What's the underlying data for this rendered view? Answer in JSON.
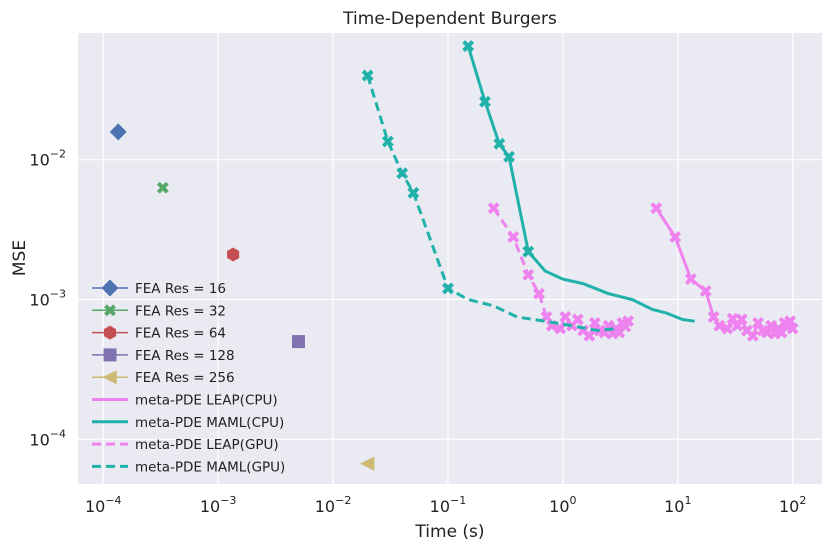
{
  "chart_data": {
    "type": "scatter",
    "title": "Time-Dependent Burgers",
    "xlabel": "Time (s)",
    "ylabel": "MSE",
    "xscale": "log",
    "yscale": "log",
    "xlim": [
      6.03e-05,
      180
    ],
    "ylim": [
      4.79e-05,
      0.0806
    ],
    "grid": true,
    "legend_position": "lower-left",
    "x_ticks": [
      {
        "value": 0.0001,
        "base": "10",
        "exp": "−4"
      },
      {
        "value": 0.001,
        "base": "10",
        "exp": "−3"
      },
      {
        "value": 0.01,
        "base": "10",
        "exp": "−2"
      },
      {
        "value": 0.1,
        "base": "10",
        "exp": "−1"
      },
      {
        "value": 1,
        "base": "10",
        "exp": "0"
      },
      {
        "value": 10,
        "base": "10",
        "exp": "1"
      },
      {
        "value": 100,
        "base": "10",
        "exp": "2"
      }
    ],
    "y_ticks": [
      {
        "value": 0.0001,
        "base": "10",
        "exp": "−4"
      },
      {
        "value": 0.001,
        "base": "10",
        "exp": "−3"
      },
      {
        "value": 0.01,
        "base": "10",
        "exp": "−2"
      }
    ],
    "series": [
      {
        "name": "FEA Res = 16",
        "kind": "marker",
        "marker": "diamond",
        "color": "#4c72b0",
        "points": [
          {
            "x": 0.000135,
            "y": 0.0158
          }
        ]
      },
      {
        "name": "FEA Res = 32",
        "kind": "marker",
        "marker": "x",
        "color": "#55a868",
        "points": [
          {
            "x": 0.00033,
            "y": 0.0063
          }
        ]
      },
      {
        "name": "FEA Res = 64",
        "kind": "marker",
        "marker": "hexagon",
        "color": "#c44e52",
        "points": [
          {
            "x": 0.00135,
            "y": 0.0021
          }
        ]
      },
      {
        "name": "FEA Res = 128",
        "kind": "marker",
        "marker": "square",
        "color": "#8172b2",
        "points": [
          {
            "x": 0.005,
            "y": 0.0005
          }
        ]
      },
      {
        "name": "FEA Res = 256",
        "kind": "marker",
        "marker": "triangle-left",
        "color": "#ccb974",
        "points": [
          {
            "x": 0.02,
            "y": 6.7e-05
          }
        ]
      },
      {
        "name": "meta-PDE LEAP(CPU)",
        "kind": "line",
        "dash": false,
        "color": "#ee82ee",
        "points": [
          {
            "x": 6.5,
            "y": 0.0045,
            "m": true
          },
          {
            "x": 9.5,
            "y": 0.0028,
            "m": true
          },
          {
            "x": 13,
            "y": 0.0014,
            "m": true
          },
          {
            "x": 17.5,
            "y": 0.00115,
            "m": true
          },
          {
            "x": 20.5,
            "y": 0.00075,
            "m": true
          },
          {
            "x": 23,
            "y": 0.00065,
            "m": true
          },
          {
            "x": 27,
            "y": 0.00062,
            "m": true
          },
          {
            "x": 30,
            "y": 0.00073,
            "m": true
          },
          {
            "x": 33,
            "y": 0.00065,
            "m": true
          },
          {
            "x": 36,
            "y": 0.00072,
            "m": true
          },
          {
            "x": 40,
            "y": 0.0006,
            "m": true
          },
          {
            "x": 45,
            "y": 0.00055,
            "m": true
          },
          {
            "x": 50,
            "y": 0.00068,
            "m": true
          },
          {
            "x": 55,
            "y": 0.0006,
            "m": true
          },
          {
            "x": 60,
            "y": 0.00058,
            "m": true
          },
          {
            "x": 65,
            "y": 0.00065,
            "m": true
          },
          {
            "x": 70,
            "y": 0.00057,
            "m": true
          },
          {
            "x": 75,
            "y": 0.00062,
            "m": true
          },
          {
            "x": 80,
            "y": 0.00058,
            "m": true
          },
          {
            "x": 85,
            "y": 0.00068,
            "m": true
          },
          {
            "x": 90,
            "y": 0.00064,
            "m": true
          },
          {
            "x": 95,
            "y": 0.0007,
            "m": true
          },
          {
            "x": 100,
            "y": 0.00062,
            "m": true
          }
        ]
      },
      {
        "name": "meta-PDE MAML(CPU)",
        "kind": "line",
        "dash": false,
        "color": "#20b2aa",
        "points": [
          {
            "x": 0.15,
            "y": 0.065,
            "m": true
          },
          {
            "x": 0.21,
            "y": 0.026,
            "m": true
          },
          {
            "x": 0.28,
            "y": 0.013,
            "m": true
          },
          {
            "x": 0.34,
            "y": 0.0105,
            "m": true
          },
          {
            "x": 0.5,
            "y": 0.0022,
            "m": true
          },
          {
            "x": 0.7,
            "y": 0.0016,
            "m": false
          },
          {
            "x": 1.0,
            "y": 0.0014,
            "m": false
          },
          {
            "x": 1.5,
            "y": 0.0013,
            "m": false
          },
          {
            "x": 2.5,
            "y": 0.0011,
            "m": false
          },
          {
            "x": 4.0,
            "y": 0.001,
            "m": false
          },
          {
            "x": 6.0,
            "y": 0.00085,
            "m": false
          },
          {
            "x": 8.0,
            "y": 0.0008,
            "m": false
          },
          {
            "x": 11.0,
            "y": 0.00072,
            "m": false
          },
          {
            "x": 14.0,
            "y": 0.0007,
            "m": false
          }
        ]
      },
      {
        "name": "meta-PDE LEAP(GPU)",
        "kind": "line",
        "dash": true,
        "color": "#ee82ee",
        "points": [
          {
            "x": 0.25,
            "y": 0.0045,
            "m": true
          },
          {
            "x": 0.37,
            "y": 0.0028,
            "m": true
          },
          {
            "x": 0.5,
            "y": 0.0015,
            "m": true
          },
          {
            "x": 0.62,
            "y": 0.0011,
            "m": true
          },
          {
            "x": 0.72,
            "y": 0.00075,
            "m": true
          },
          {
            "x": 0.8,
            "y": 0.00065,
            "m": true
          },
          {
            "x": 0.95,
            "y": 0.00062,
            "m": true
          },
          {
            "x": 1.05,
            "y": 0.00075,
            "m": true
          },
          {
            "x": 1.2,
            "y": 0.00065,
            "m": true
          },
          {
            "x": 1.35,
            "y": 0.00072,
            "m": true
          },
          {
            "x": 1.5,
            "y": 0.0006,
            "m": true
          },
          {
            "x": 1.7,
            "y": 0.00055,
            "m": true
          },
          {
            "x": 1.9,
            "y": 0.00068,
            "m": true
          },
          {
            "x": 2.1,
            "y": 0.0006,
            "m": true
          },
          {
            "x": 2.3,
            "y": 0.00058,
            "m": true
          },
          {
            "x": 2.5,
            "y": 0.00065,
            "m": true
          },
          {
            "x": 2.7,
            "y": 0.00057,
            "m": true
          },
          {
            "x": 2.9,
            "y": 0.00062,
            "m": true
          },
          {
            "x": 3.1,
            "y": 0.00058,
            "m": true
          },
          {
            "x": 3.3,
            "y": 0.00068,
            "m": true
          },
          {
            "x": 3.5,
            "y": 0.00064,
            "m": true
          },
          {
            "x": 3.7,
            "y": 0.0007,
            "m": true
          }
        ]
      },
      {
        "name": "meta-PDE MAML(GPU)",
        "kind": "line",
        "dash": true,
        "color": "#20b2aa",
        "points": [
          {
            "x": 0.02,
            "y": 0.04,
            "m": true
          },
          {
            "x": 0.03,
            "y": 0.0135,
            "m": true
          },
          {
            "x": 0.04,
            "y": 0.008,
            "m": true
          },
          {
            "x": 0.05,
            "y": 0.0058,
            "m": true
          },
          {
            "x": 0.1,
            "y": 0.0012,
            "m": true
          },
          {
            "x": 0.15,
            "y": 0.001,
            "m": false
          },
          {
            "x": 0.25,
            "y": 0.0009,
            "m": false
          },
          {
            "x": 0.4,
            "y": 0.00075,
            "m": false
          },
          {
            "x": 0.7,
            "y": 0.0007,
            "m": false
          },
          {
            "x": 1.2,
            "y": 0.00065,
            "m": false
          },
          {
            "x": 2.0,
            "y": 0.0006,
            "m": false
          },
          {
            "x": 3.0,
            "y": 0.00062,
            "m": false
          }
        ]
      }
    ]
  }
}
